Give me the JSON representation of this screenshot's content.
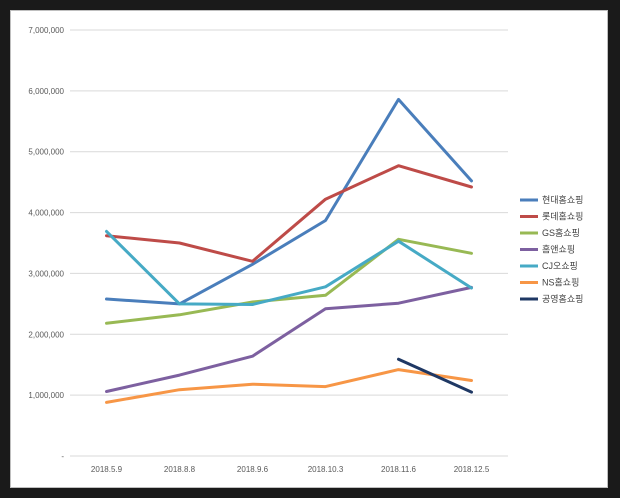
{
  "chart_data": {
    "type": "line",
    "title": "",
    "xlabel": "",
    "ylabel": "",
    "categories": [
      "2018.5.9",
      "2018.8.8",
      "2018.9.6",
      "2018.10.3",
      "2018.11.6",
      "2018.12.5"
    ],
    "ylim": [
      0,
      7000000
    ],
    "y_ticks": [
      {
        "value": 0,
        "label": "-"
      },
      {
        "value": 1000000,
        "label": "1,000,000"
      },
      {
        "value": 2000000,
        "label": "2,000,000"
      },
      {
        "value": 3000000,
        "label": "3,000,000"
      },
      {
        "value": 4000000,
        "label": "4,000,000"
      },
      {
        "value": 5000000,
        "label": "5,000,000"
      },
      {
        "value": 6000000,
        "label": "6,000,000"
      },
      {
        "value": 7000000,
        "label": "7,000,000"
      }
    ],
    "grid": true,
    "legend_position": "right",
    "series": [
      {
        "name": "현대홈쇼핑",
        "color": "#4a7ebb",
        "values": [
          2580000,
          2500000,
          3150000,
          3870000,
          5860000,
          4520000
        ]
      },
      {
        "name": "롯데홈쇼핑",
        "color": "#be4b48",
        "values": [
          3620000,
          3500000,
          3200000,
          4220000,
          4770000,
          4420000
        ]
      },
      {
        "name": "GS홈쇼핑",
        "color": "#98b954",
        "values": [
          2180000,
          2320000,
          2530000,
          2640000,
          3560000,
          3330000
        ]
      },
      {
        "name": "홈앤쇼핑",
        "color": "#7d60a0",
        "values": [
          1060000,
          1330000,
          1640000,
          2420000,
          2510000,
          2770000
        ]
      },
      {
        "name": "CJ오쇼핑",
        "color": "#46aac5",
        "values": [
          3690000,
          2500000,
          2490000,
          2780000,
          3530000,
          2760000
        ]
      },
      {
        "name": "NS홈쇼핑",
        "color": "#f79646",
        "values": [
          880000,
          1090000,
          1180000,
          1140000,
          1420000,
          1240000
        ]
      },
      {
        "name": "공영홈쇼핑",
        "color": "#1f3864",
        "values": [
          null,
          null,
          null,
          null,
          1590000,
          1050000
        ]
      }
    ]
  }
}
